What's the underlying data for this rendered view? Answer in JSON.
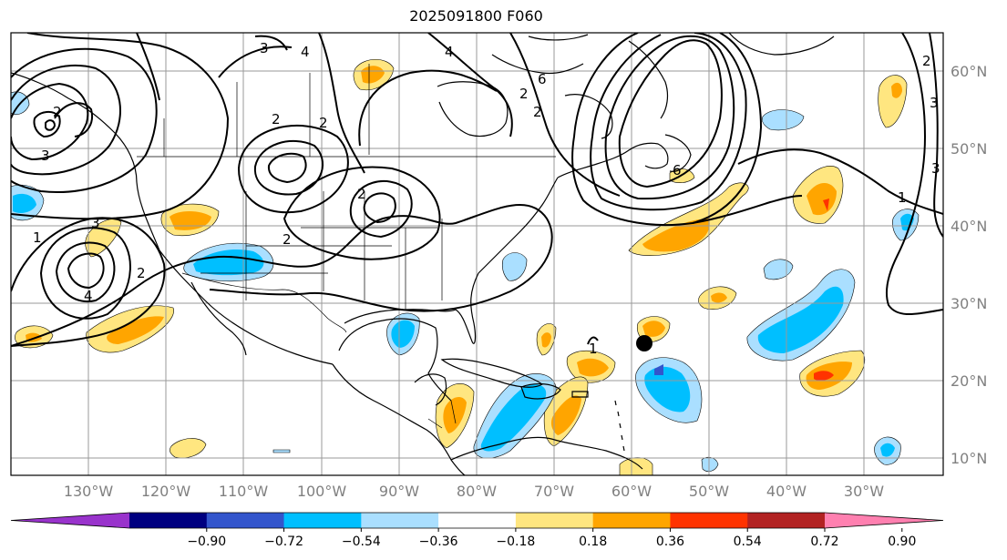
{
  "title": "2025091800 F060",
  "lon_labels": [
    "130°W",
    "120°W",
    "110°W",
    "100°W",
    "90°W",
    "80°W",
    "70°W",
    "60°W",
    "50°W",
    "40°W",
    "30°W"
  ],
  "lat_labels": [
    "60°N",
    "50°N",
    "40°N",
    "30°N",
    "20°N",
    "10°N"
  ],
  "colorbar": {
    "ticks": [
      "−0.90",
      "−0.72",
      "−0.54",
      "−0.36",
      "−0.18",
      "0.18",
      "0.36",
      "0.54",
      "0.72",
      "0.90"
    ],
    "colors": [
      "#9933cc",
      "#000080",
      "#3355cc",
      "#00bfff",
      "#aadfff",
      "#ffffff",
      "#ffe680",
      "#ffa500",
      "#ff3300",
      "#b22222",
      "#ff80b0"
    ]
  },
  "contour_labels": [
    "2",
    "3",
    "4",
    "2",
    "2",
    "2",
    "3",
    "4",
    "6",
    "2",
    "2",
    "1",
    "2",
    "4",
    "2",
    "3",
    "3",
    "1",
    "1",
    "6",
    "2",
    "3"
  ],
  "colors": {
    "pos1": "#ffe680",
    "pos2": "#ffa500",
    "pos3": "#ff3300",
    "neg1": "#aadfff",
    "neg2": "#00bfff",
    "neg3": "#3355cc"
  }
}
